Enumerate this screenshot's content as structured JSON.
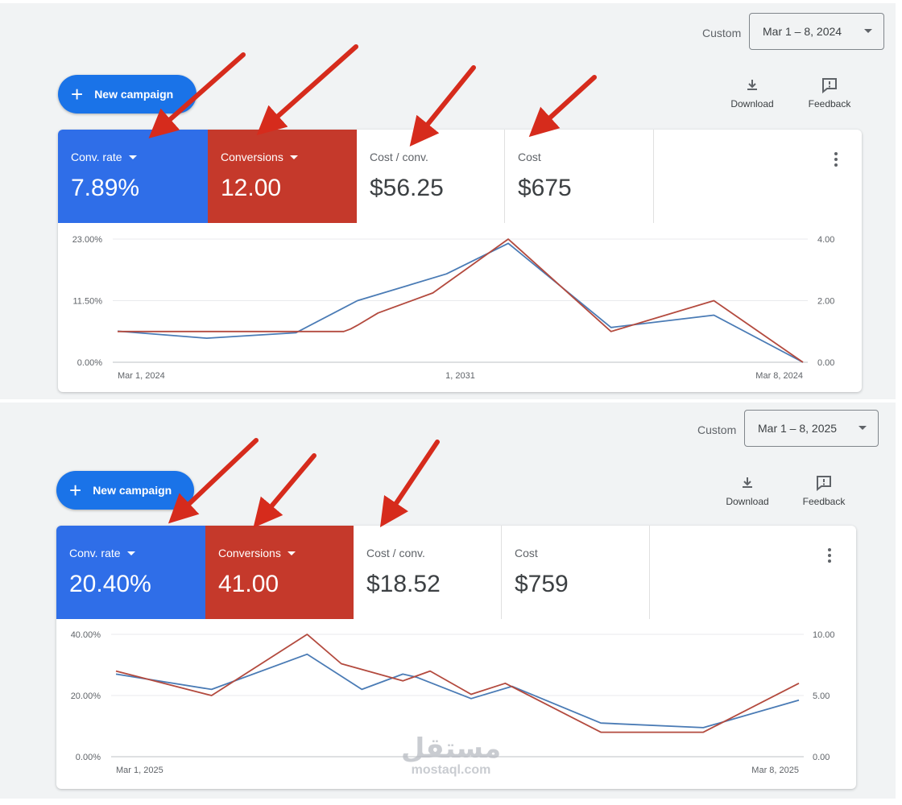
{
  "panels": [
    {
      "custom_label": "Custom",
      "date_range": "Mar 1 – 8, 2024",
      "new_campaign_label": "New campaign",
      "download_label": "Download",
      "feedback_label": "Feedback",
      "metrics": [
        {
          "label": "Conv. rate",
          "value": "7.89%"
        },
        {
          "label": "Conversions",
          "value": "12.00"
        },
        {
          "label": "Cost / conv.",
          "value": "$56.25"
        },
        {
          "label": "Cost",
          "value": "$675"
        }
      ],
      "chart_data": {
        "type": "line",
        "x_start_label": "Mar 1, 2024",
        "x_mid_label": "1, 2031",
        "x_end_label": "Mar 8, 2024",
        "y_left_ticks": [
          "23.00%",
          "11.50%",
          "0.00%"
        ],
        "y_right_ticks": [
          "4.00",
          "2.00",
          "0.00"
        ],
        "y_left_range": [
          0,
          23
        ],
        "y_right_range": [
          0,
          4
        ],
        "colors": {
          "conv_rate": "#4a7bb5",
          "conversions": "#b34a3e"
        },
        "series": [
          {
            "key": "conv_rate",
            "axis": "left",
            "x": [
              0,
              0.13,
              0.26,
              0.35,
              0.48,
              0.57,
              0.72,
              0.87,
              1
            ],
            "y": [
              5.8,
              4.5,
              5.5,
              11.5,
              16.5,
              22.2,
              6.5,
              8.8,
              0
            ]
          },
          {
            "key": "conversions",
            "axis": "right",
            "x": [
              0,
              0.33,
              0.34,
              0.35,
              0.38,
              0.46,
              0.57,
              0.72,
              0.87,
              1
            ],
            "y": [
              1.0,
              1.0,
              1.08,
              1.2,
              1.6,
              2.25,
              4.0,
              1.0,
              2.0,
              0
            ]
          }
        ]
      }
    },
    {
      "custom_label": "Custom",
      "date_range": "Mar 1 – 8, 2025",
      "new_campaign_label": "New campaign",
      "download_label": "Download",
      "feedback_label": "Feedback",
      "metrics": [
        {
          "label": "Conv. rate",
          "value": "20.40%"
        },
        {
          "label": "Conversions",
          "value": "41.00"
        },
        {
          "label": "Cost / conv.",
          "value": "$18.52"
        },
        {
          "label": "Cost",
          "value": "$759"
        }
      ],
      "chart_data": {
        "type": "line",
        "x_start_label": "Mar 1, 2025",
        "x_mid_label": "",
        "x_end_label": "Mar 8, 2025",
        "y_left_ticks": [
          "40.00%",
          "20.00%",
          "0.00%"
        ],
        "y_right_ticks": [
          "10.00",
          "5.00",
          "0.00"
        ],
        "y_left_range": [
          0,
          40
        ],
        "y_right_range": [
          0,
          10
        ],
        "colors": {
          "conv_rate": "#4a7bb5",
          "conversions": "#b34a3e"
        },
        "series": [
          {
            "key": "conv_rate",
            "axis": "left",
            "x": [
              0,
              0.14,
              0.28,
              0.36,
              0.42,
              0.44,
              0.52,
              0.58,
              0.71,
              0.86,
              1
            ],
            "y": [
              27,
              22,
              33.5,
              22,
              27,
              26,
              19,
              23,
              11,
              9.5,
              18.5
            ]
          },
          {
            "key": "conversions",
            "axis": "right",
            "x": [
              0,
              0.14,
              0.28,
              0.33,
              0.42,
              0.46,
              0.52,
              0.57,
              0.71,
              0.86,
              1
            ],
            "y": [
              7.0,
              5.0,
              10.0,
              7.6,
              6.2,
              7.0,
              5.1,
              6.0,
              2.0,
              2.0,
              6.0
            ]
          }
        ]
      }
    }
  ],
  "watermark": {
    "arabic": "مستقل",
    "latin": "mostaql.com"
  },
  "annotation_color": "#d62b1c"
}
